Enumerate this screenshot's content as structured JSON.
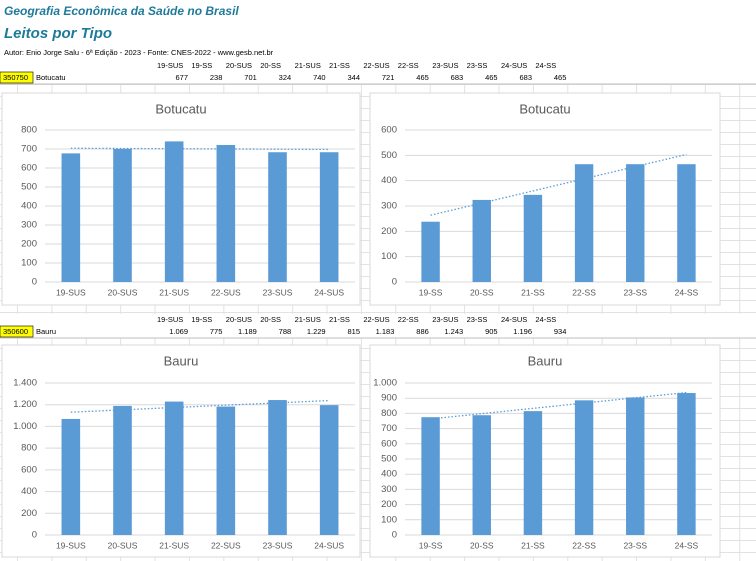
{
  "header": {
    "title": "Geografia Econômica da Saúde no Brasil",
    "subtitle": "Leitos por Tipo",
    "author": "Autor: Enio Jorge Salu - 6ª Edição - 2023 - Fonte: CNES-2022 - www.gesb.net.br"
  },
  "tables": [
    {
      "columns": [
        "19-SUS",
        "19-SS",
        "20-SUS",
        "20-SS",
        "21-SUS",
        "21-SS",
        "22-SUS",
        "22-SS",
        "23-SUS",
        "23-SS",
        "24-SUS",
        "24-SS"
      ],
      "code": "350750",
      "name": "Botucatu",
      "values": [
        "677",
        "238",
        "701",
        "324",
        "740",
        "344",
        "721",
        "465",
        "683",
        "465",
        "683",
        "465"
      ]
    },
    {
      "columns": [
        "19-SUS",
        "19-SS",
        "20-SUS",
        "20-SS",
        "21-SUS",
        "21-SS",
        "22-SUS",
        "22-SS",
        "23-SUS",
        "23-SS",
        "24-SUS",
        "24-SS"
      ],
      "code": "350600",
      "name": "Bauru",
      "values": [
        "1.069",
        "775",
        "1.189",
        "788",
        "1.229",
        "815",
        "1.183",
        "886",
        "1.243",
        "905",
        "1.196",
        "934"
      ]
    }
  ],
  "chart_data": [
    {
      "type": "bar",
      "title": "Botucatu",
      "categories": [
        "19-SUS",
        "20-SUS",
        "21-SUS",
        "22-SUS",
        "23-SUS",
        "24-SUS"
      ],
      "values": [
        677,
        701,
        740,
        721,
        683,
        683
      ],
      "color": "#5b9bd5",
      "ylim": [
        0,
        800
      ],
      "yticks": [
        0,
        100,
        200,
        300,
        400,
        500,
        600,
        700,
        800
      ],
      "grid": true,
      "trendline": true
    },
    {
      "type": "bar",
      "title": "Botucatu",
      "categories": [
        "19-SS",
        "20-SS",
        "21-SS",
        "22-SS",
        "23-SS",
        "24-SS"
      ],
      "values": [
        238,
        324,
        344,
        465,
        465,
        465
      ],
      "color": "#5b9bd5",
      "ylim": [
        0,
        600
      ],
      "yticks": [
        0,
        100,
        200,
        300,
        400,
        500,
        600
      ],
      "grid": true,
      "trendline": true
    },
    {
      "type": "bar",
      "title": "Bauru",
      "categories": [
        "19-SUS",
        "20-SUS",
        "21-SUS",
        "22-SUS",
        "23-SUS",
        "24-SUS"
      ],
      "values": [
        1069,
        1189,
        1229,
        1183,
        1243,
        1196
      ],
      "color": "#5b9bd5",
      "ylim": [
        0,
        1400
      ],
      "yticks": [
        0,
        200,
        400,
        600,
        800,
        {
          "value": 1000,
          "label": "1.000"
        },
        {
          "value": 1200,
          "label": "1.200"
        },
        {
          "value": 1400,
          "label": "1.400"
        }
      ],
      "grid": true,
      "trendline": true
    },
    {
      "type": "bar",
      "title": "Bauru",
      "categories": [
        "19-SS",
        "20-SS",
        "21-SS",
        "22-SS",
        "23-SS",
        "24-SS"
      ],
      "values": [
        775,
        788,
        815,
        886,
        905,
        934
      ],
      "color": "#5b9bd5",
      "ylim": [
        0,
        1000
      ],
      "yticks": [
        0,
        100,
        200,
        300,
        400,
        500,
        600,
        700,
        800,
        900,
        {
          "value": 1000,
          "label": "1.000"
        }
      ],
      "grid": true,
      "trendline": true
    }
  ]
}
